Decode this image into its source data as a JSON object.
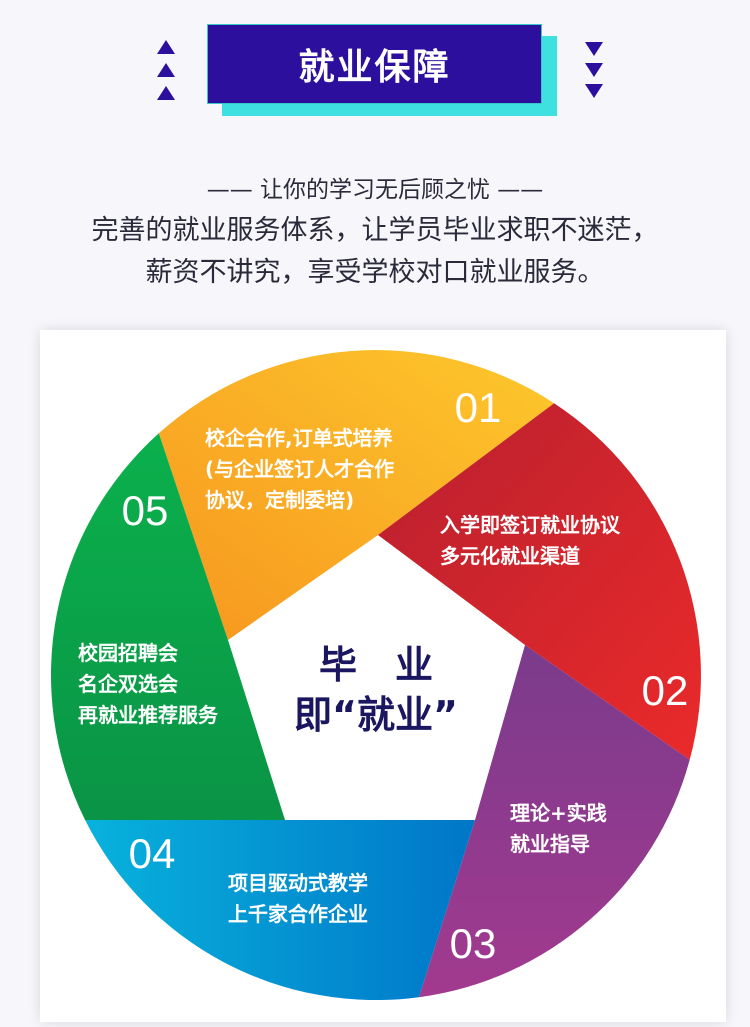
{
  "header": {
    "title": "就业保障",
    "tagline": "—— 让你的学习无后顾之忧 ——",
    "description_lines": [
      "完善的就业服务体系，让学员毕业求职不迷茫，",
      "薪资不讲究，享受学校对口就业服务。"
    ],
    "decor_icons": [
      "triangle-up-icon",
      "triangle-down-icon"
    ]
  },
  "diagram": {
    "center_lines": [
      "毕　业",
      "即“就业”"
    ],
    "segments": [
      {
        "number": "01",
        "color": "#f8a51d",
        "lines": [
          "校企合作,订单式培养",
          "(与企业签订人才合作",
          "协议，定制委培)"
        ]
      },
      {
        "number": "02",
        "color": "#d8232c",
        "lines": [
          "入学即签订就业协议",
          "多元化就业渠道"
        ]
      },
      {
        "number": "03",
        "color": "#8e3a8e",
        "lines": [
          "理论+实践",
          "就业指导"
        ]
      },
      {
        "number": "04",
        "color": "#0a95d4",
        "lines": [
          "项目驱动式教学",
          "上千家合作企业"
        ]
      },
      {
        "number": "05",
        "color": "#0aa24a",
        "lines": [
          "校园招聘会",
          "名企双选会",
          "再就业推荐服务"
        ]
      }
    ]
  }
}
